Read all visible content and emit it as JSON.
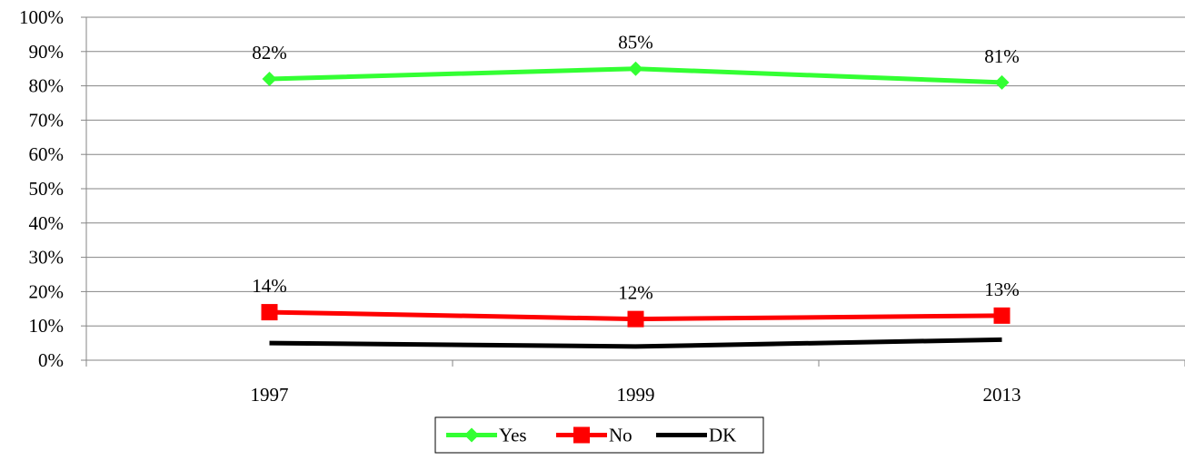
{
  "chart_data": {
    "type": "line",
    "title": "",
    "xlabel": "",
    "ylabel": "",
    "categories": [
      "1997",
      "1999",
      "2013"
    ],
    "ylim": [
      0,
      100
    ],
    "yticks": [
      0,
      10,
      20,
      30,
      40,
      50,
      60,
      70,
      80,
      90,
      100
    ],
    "ytick_labels": [
      "0%",
      "10%",
      "20%",
      "30%",
      "40%",
      "50%",
      "60%",
      "70%",
      "80%",
      "90%",
      "100%"
    ],
    "grid": true,
    "legend_position": "bottom",
    "series": [
      {
        "name": "Yes",
        "values": [
          82,
          85,
          81
        ],
        "data_labels": [
          "82%",
          "85%",
          "81%"
        ],
        "color": "#33ff33",
        "marker": "diamond"
      },
      {
        "name": "No",
        "values": [
          14,
          12,
          13
        ],
        "data_labels": [
          "14%",
          "12%",
          "13%"
        ],
        "color": "#ff0000",
        "marker": "square"
      },
      {
        "name": "DK",
        "values": [
          5,
          4,
          6
        ],
        "data_labels": [],
        "color": "#000000",
        "marker": "none"
      }
    ]
  }
}
